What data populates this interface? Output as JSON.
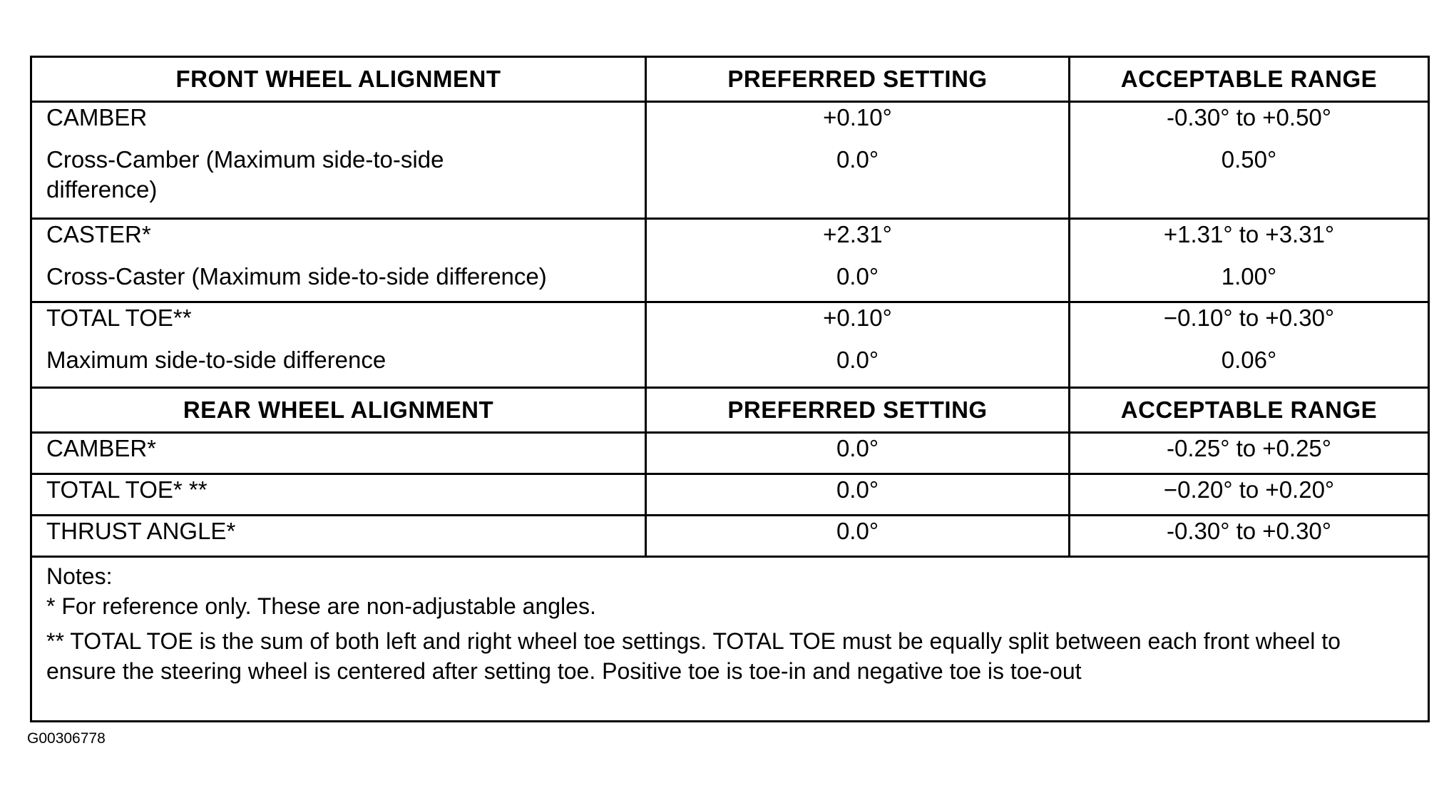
{
  "front": {
    "header": [
      "FRONT WHEEL ALIGNMENT",
      "PREFERRED SETTING",
      "ACCEPTABLE RANGE"
    ],
    "groups": [
      {
        "rows": [
          {
            "label": "CAMBER",
            "preferred": "+0.10°",
            "range": "-0.30° to +0.50°"
          },
          {
            "label": "Cross-Camber (Maximum side-to-side difference)",
            "preferred": "0.0°",
            "range": "0.50°"
          }
        ]
      },
      {
        "rows": [
          {
            "label": "CASTER*",
            "preferred": "+2.31°",
            "range": "+1.31° to +3.31°"
          },
          {
            "label": "Cross-Caster (Maximum side-to-side difference)",
            "preferred": "0.0°",
            "range": "1.00°"
          }
        ]
      },
      {
        "rows": [
          {
            "label": "TOTAL TOE**",
            "preferred": "+0.10°",
            "range": "−0.10° to +0.30°"
          },
          {
            "label": "Maximum side-to-side difference",
            "preferred": "0.0°",
            "range": "0.06°"
          }
        ]
      }
    ]
  },
  "rear": {
    "header": [
      "REAR WHEEL ALIGNMENT",
      "PREFERRED SETTING",
      "ACCEPTABLE RANGE"
    ],
    "rows": [
      {
        "label": "CAMBER*",
        "preferred": "0.0°",
        "range": "-0.25° to +0.25°"
      },
      {
        "label": "TOTAL TOE* **",
        "preferred": "0.0°",
        "range": "−0.20° to +0.20°"
      },
      {
        "label": "THRUST ANGLE*",
        "preferred": "0.0°",
        "range": "-0.30° to +0.30°"
      }
    ]
  },
  "notes": {
    "title": "Notes:",
    "items": [
      "* For reference only. These are non-adjustable angles.",
      "** TOTAL TOE is the sum of both left and right wheel toe settings. TOTAL TOE must be equally split between each front wheel to ensure the steering wheel is centered after setting toe. Positive toe is toe-in and negative toe is toe-out"
    ]
  },
  "figure_id": "G00306778"
}
